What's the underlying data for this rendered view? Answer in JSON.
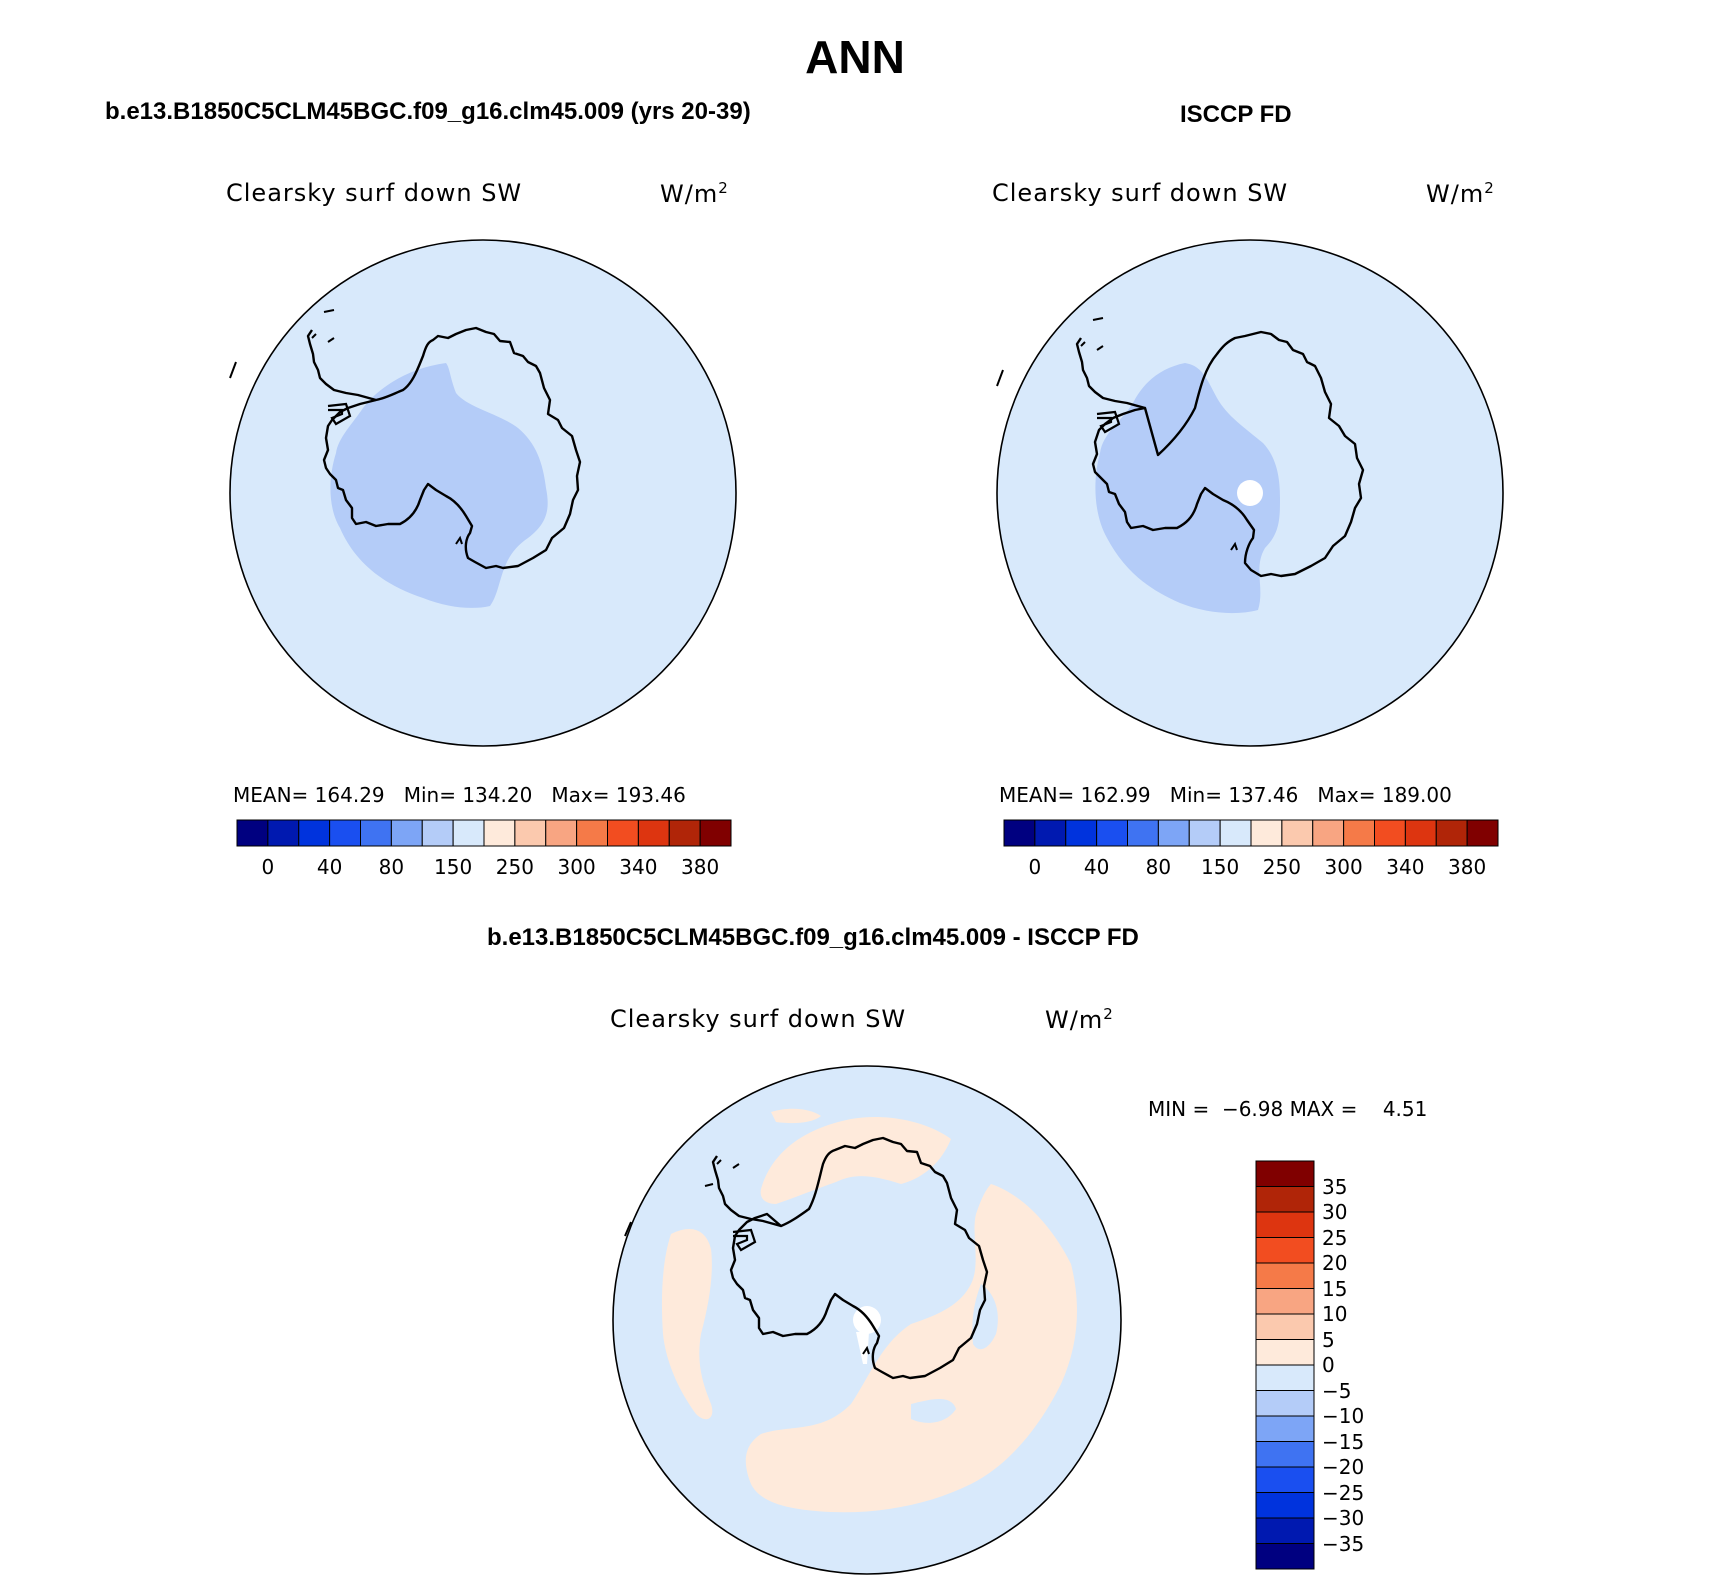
{
  "title": "ANN",
  "palette": {
    "blues": [
      "#000080",
      "#0019b0",
      "#0033dd",
      "#1a4ff0",
      "#3f73f2",
      "#7da5f6",
      "#b4ccf8",
      "#d8e9fb"
    ],
    "reds": [
      "#feeadb",
      "#fbc9ae",
      "#f8a582",
      "#f57a48",
      "#f24d20",
      "#dd3510",
      "#b02508",
      "#800000"
    ]
  },
  "panels": [
    {
      "id": "model",
      "heading": "b.e13.B1850C5CLM45BGC.f09_g16.clm45.009 (yrs 20-39)",
      "variable": "Clearsky surf down SW",
      "units_base": "W/m",
      "units_sup": "2",
      "stats": {
        "mean_label": "MEAN=",
        "mean": "164.29",
        "min_label": "Min=",
        "min": "134.20",
        "max_label": "Max=",
        "max": "193.46"
      },
      "colorbar_ticks": [
        "0",
        "40",
        "80",
        "150",
        "250",
        "300",
        "340",
        "380"
      ]
    },
    {
      "id": "obs",
      "heading": "ISCCP FD",
      "variable": "Clearsky surf down SW",
      "units_base": "W/m",
      "units_sup": "2",
      "stats": {
        "mean_label": "MEAN=",
        "mean": "162.99",
        "min_label": "Min=",
        "min": "137.46",
        "max_label": "Max=",
        "max": "189.00"
      },
      "colorbar_ticks": [
        "0",
        "40",
        "80",
        "150",
        "250",
        "300",
        "340",
        "380"
      ]
    },
    {
      "id": "diff",
      "heading": "b.e13.B1850C5CLM45BGC.f09_g16.clm45.009 - ISCCP FD",
      "variable": "Clearsky surf down SW",
      "units_base": "W/m",
      "units_sup": "2",
      "stats": {
        "min_label": "MIN =",
        "min": "−6.98",
        "max_label": "MAX =",
        "max": "4.51"
      },
      "colorbar_ticks": [
        "35",
        "30",
        "25",
        "20",
        "15",
        "10",
        "5",
        "0",
        "−5",
        "−10",
        "−15",
        "−20",
        "−25",
        "−30",
        "−35"
      ]
    }
  ]
}
